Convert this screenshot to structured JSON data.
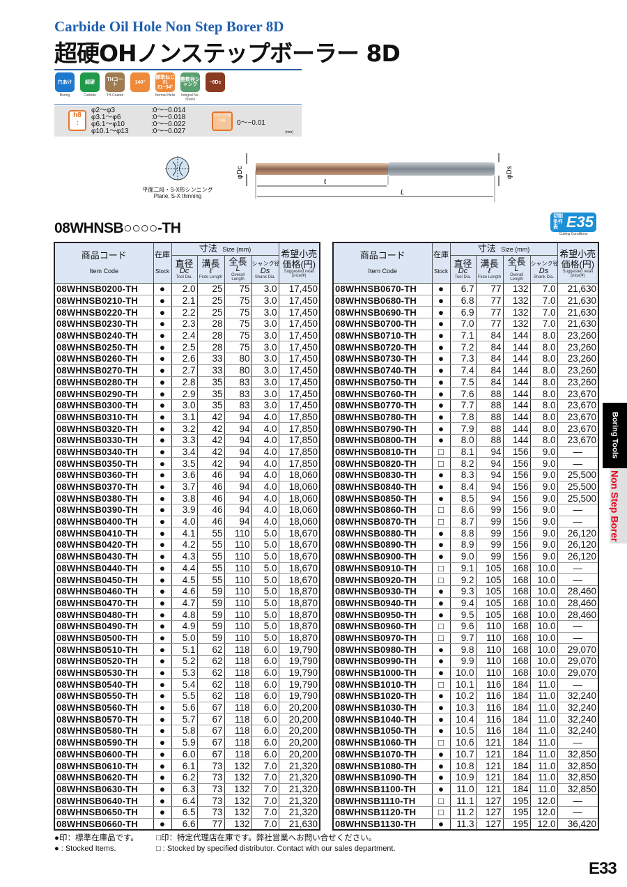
{
  "header": {
    "subtitle_en": "Carbide Oil Hole Non Step Borer 8D",
    "title_ja": "超硬OHノンステップボーラー 8D"
  },
  "feature_icons": [
    {
      "label": "穴あけ",
      "caption": "Boring",
      "color": "#1e78d0"
    },
    {
      "label": "超硬",
      "caption": "Carbide",
      "color": "#1f9a4a"
    },
    {
      "label": "THコート",
      "caption": "TH-Coated",
      "color": "#a07a50"
    },
    {
      "label": "140°",
      "caption": "",
      "color": "#ef8a3c"
    },
    {
      "label": "標準ねじれ 21~34°",
      "caption": "Normal Helix",
      "color": "#ef8a3c"
    },
    {
      "label": "整数径シャンク",
      "caption": "Integral No. Shank",
      "color": "#5aa070"
    },
    {
      "label": "~8Dc",
      "caption": "",
      "color": "#8a3a20"
    }
  ],
  "tolerance": {
    "badge": "h8",
    "rows": [
      [
        "φ2～φ3",
        ":0～−0.014"
      ],
      [
        "φ3.1～φ6",
        ":0～−0.018"
      ],
      [
        "φ6.1～φ10",
        ":0～−0.022"
      ],
      [
        "φ10.1～φ13",
        ":0～−0.027"
      ]
    ],
    "shank_badge": "シャンク径公差",
    "shank_value": "0～−0.01",
    "unit": "(mm)"
  },
  "diagram": {
    "thinning_ja": "平面二段・S-X形シンニング",
    "thinning_en": "Plane, S-X thinning",
    "labels": {
      "dc": "φDc",
      "ds": "φDs",
      "flute": "ℓ",
      "overall": "L"
    }
  },
  "series_code": "08WHNSB○○○○-TH",
  "cutting_conditions": {
    "badge": "E35",
    "badge_ja": "切削条件表",
    "caption": "Cutting Conditions"
  },
  "table_header": {
    "item_ja": "商品コード",
    "item_en": "Item Code",
    "stock_ja": "在庫",
    "stock_en": "Stock",
    "size_ja": "寸法",
    "size_en": "Size (mm)",
    "dc_ja": "直径",
    "dc_sym": "Dc",
    "dc_en": "Tool Dia.",
    "fl_ja": "溝長",
    "fl_sym": "ℓ",
    "fl_en": "Flute Length",
    "ol_ja": "全長",
    "ol_sym": "L",
    "ol_en": "Overall Length",
    "ds_ja": "シャンク径",
    "ds_sym": "Ds",
    "ds_en": "Shank Dia.",
    "price_ja": "希望小売価格(円)",
    "price_en": "Suggested retail price(¥)"
  },
  "columns": [
    "item_code",
    "stock",
    "dc",
    "flute_length",
    "overall_length",
    "shank_dia",
    "price"
  ],
  "table_left": [
    [
      "08WHNSB0200-TH",
      "●",
      "2.0",
      "25",
      "75",
      "3.0",
      "17,450"
    ],
    [
      "08WHNSB0210-TH",
      "●",
      "2.1",
      "25",
      "75",
      "3.0",
      "17,450"
    ],
    [
      "08WHNSB0220-TH",
      "●",
      "2.2",
      "25",
      "75",
      "3.0",
      "17,450"
    ],
    [
      "08WHNSB0230-TH",
      "●",
      "2.3",
      "28",
      "75",
      "3.0",
      "17,450"
    ],
    [
      "08WHNSB0240-TH",
      "●",
      "2.4",
      "28",
      "75",
      "3.0",
      "17,450"
    ],
    [
      "08WHNSB0250-TH",
      "●",
      "2.5",
      "28",
      "75",
      "3.0",
      "17,450"
    ],
    [
      "08WHNSB0260-TH",
      "●",
      "2.6",
      "33",
      "80",
      "3.0",
      "17,450"
    ],
    [
      "08WHNSB0270-TH",
      "●",
      "2.7",
      "33",
      "80",
      "3.0",
      "17,450"
    ],
    [
      "08WHNSB0280-TH",
      "●",
      "2.8",
      "35",
      "83",
      "3.0",
      "17,450"
    ],
    [
      "08WHNSB0290-TH",
      "●",
      "2.9",
      "35",
      "83",
      "3.0",
      "17,450"
    ],
    [
      "08WHNSB0300-TH",
      "●",
      "3.0",
      "35",
      "83",
      "3.0",
      "17,450"
    ],
    [
      "08WHNSB0310-TH",
      "●",
      "3.1",
      "42",
      "94",
      "4.0",
      "17,850"
    ],
    [
      "08WHNSB0320-TH",
      "●",
      "3.2",
      "42",
      "94",
      "4.0",
      "17,850"
    ],
    [
      "08WHNSB0330-TH",
      "●",
      "3.3",
      "42",
      "94",
      "4.0",
      "17,850"
    ],
    [
      "08WHNSB0340-TH",
      "●",
      "3.4",
      "42",
      "94",
      "4.0",
      "17,850"
    ],
    [
      "08WHNSB0350-TH",
      "●",
      "3.5",
      "42",
      "94",
      "4.0",
      "17,850"
    ],
    [
      "08WHNSB0360-TH",
      "●",
      "3.6",
      "46",
      "94",
      "4.0",
      "18,060"
    ],
    [
      "08WHNSB0370-TH",
      "●",
      "3.7",
      "46",
      "94",
      "4.0",
      "18,060"
    ],
    [
      "08WHNSB0380-TH",
      "●",
      "3.8",
      "46",
      "94",
      "4.0",
      "18,060"
    ],
    [
      "08WHNSB0390-TH",
      "●",
      "3.9",
      "46",
      "94",
      "4.0",
      "18,060"
    ],
    [
      "08WHNSB0400-TH",
      "●",
      "4.0",
      "46",
      "94",
      "4.0",
      "18,060"
    ],
    [
      "08WHNSB0410-TH",
      "●",
      "4.1",
      "55",
      "110",
      "5.0",
      "18,670"
    ],
    [
      "08WHNSB0420-TH",
      "●",
      "4.2",
      "55",
      "110",
      "5.0",
      "18,670"
    ],
    [
      "08WHNSB0430-TH",
      "●",
      "4.3",
      "55",
      "110",
      "5.0",
      "18,670"
    ],
    [
      "08WHNSB0440-TH",
      "●",
      "4.4",
      "55",
      "110",
      "5.0",
      "18,670"
    ],
    [
      "08WHNSB0450-TH",
      "●",
      "4.5",
      "55",
      "110",
      "5.0",
      "18,670"
    ],
    [
      "08WHNSB0460-TH",
      "●",
      "4.6",
      "59",
      "110",
      "5.0",
      "18,870"
    ],
    [
      "08WHNSB0470-TH",
      "●",
      "4.7",
      "59",
      "110",
      "5.0",
      "18,870"
    ],
    [
      "08WHNSB0480-TH",
      "●",
      "4.8",
      "59",
      "110",
      "5.0",
      "18,870"
    ],
    [
      "08WHNSB0490-TH",
      "●",
      "4.9",
      "59",
      "110",
      "5.0",
      "18,870"
    ],
    [
      "08WHNSB0500-TH",
      "●",
      "5.0",
      "59",
      "110",
      "5.0",
      "18,870"
    ],
    [
      "08WHNSB0510-TH",
      "●",
      "5.1",
      "62",
      "118",
      "6.0",
      "19,790"
    ],
    [
      "08WHNSB0520-TH",
      "●",
      "5.2",
      "62",
      "118",
      "6.0",
      "19,790"
    ],
    [
      "08WHNSB0530-TH",
      "●",
      "5.3",
      "62",
      "118",
      "6.0",
      "19,790"
    ],
    [
      "08WHNSB0540-TH",
      "●",
      "5.4",
      "62",
      "118",
      "6.0",
      "19,790"
    ],
    [
      "08WHNSB0550-TH",
      "●",
      "5.5",
      "62",
      "118",
      "6.0",
      "19,790"
    ],
    [
      "08WHNSB0560-TH",
      "●",
      "5.6",
      "67",
      "118",
      "6.0",
      "20,200"
    ],
    [
      "08WHNSB0570-TH",
      "●",
      "5.7",
      "67",
      "118",
      "6.0",
      "20,200"
    ],
    [
      "08WHNSB0580-TH",
      "●",
      "5.8",
      "67",
      "118",
      "6.0",
      "20,200"
    ],
    [
      "08WHNSB0590-TH",
      "●",
      "5.9",
      "67",
      "118",
      "6.0",
      "20,200"
    ],
    [
      "08WHNSB0600-TH",
      "●",
      "6.0",
      "67",
      "118",
      "6.0",
      "20,200"
    ],
    [
      "08WHNSB0610-TH",
      "●",
      "6.1",
      "73",
      "132",
      "7.0",
      "21,320"
    ],
    [
      "08WHNSB0620-TH",
      "●",
      "6.2",
      "73",
      "132",
      "7.0",
      "21,320"
    ],
    [
      "08WHNSB0630-TH",
      "●",
      "6.3",
      "73",
      "132",
      "7.0",
      "21,320"
    ],
    [
      "08WHNSB0640-TH",
      "●",
      "6.4",
      "73",
      "132",
      "7.0",
      "21,320"
    ],
    [
      "08WHNSB0650-TH",
      "●",
      "6.5",
      "73",
      "132",
      "7.0",
      "21,320"
    ],
    [
      "08WHNSB0660-TH",
      "●",
      "6.6",
      "77",
      "132",
      "7.0",
      "21,630"
    ]
  ],
  "table_right": [
    [
      "08WHNSB0670-TH",
      "●",
      "6.7",
      "77",
      "132",
      "7.0",
      "21,630"
    ],
    [
      "08WHNSB0680-TH",
      "●",
      "6.8",
      "77",
      "132",
      "7.0",
      "21,630"
    ],
    [
      "08WHNSB0690-TH",
      "●",
      "6.9",
      "77",
      "132",
      "7.0",
      "21,630"
    ],
    [
      "08WHNSB0700-TH",
      "●",
      "7.0",
      "77",
      "132",
      "7.0",
      "21,630"
    ],
    [
      "08WHNSB0710-TH",
      "●",
      "7.1",
      "84",
      "144",
      "8.0",
      "23,260"
    ],
    [
      "08WHNSB0720-TH",
      "●",
      "7.2",
      "84",
      "144",
      "8.0",
      "23,260"
    ],
    [
      "08WHNSB0730-TH",
      "●",
      "7.3",
      "84",
      "144",
      "8.0",
      "23,260"
    ],
    [
      "08WHNSB0740-TH",
      "●",
      "7.4",
      "84",
      "144",
      "8.0",
      "23,260"
    ],
    [
      "08WHNSB0750-TH",
      "●",
      "7.5",
      "84",
      "144",
      "8.0",
      "23,260"
    ],
    [
      "08WHNSB0760-TH",
      "●",
      "7.6",
      "88",
      "144",
      "8.0",
      "23,670"
    ],
    [
      "08WHNSB0770-TH",
      "●",
      "7.7",
      "88",
      "144",
      "8.0",
      "23,670"
    ],
    [
      "08WHNSB0780-TH",
      "●",
      "7.8",
      "88",
      "144",
      "8.0",
      "23,670"
    ],
    [
      "08WHNSB0790-TH",
      "●",
      "7.9",
      "88",
      "144",
      "8.0",
      "23,670"
    ],
    [
      "08WHNSB0800-TH",
      "●",
      "8.0",
      "88",
      "144",
      "8.0",
      "23,670"
    ],
    [
      "08WHNSB0810-TH",
      "□",
      "8.1",
      "94",
      "156",
      "9.0",
      "—"
    ],
    [
      "08WHNSB0820-TH",
      "□",
      "8.2",
      "94",
      "156",
      "9.0",
      "—"
    ],
    [
      "08WHNSB0830-TH",
      "●",
      "8.3",
      "94",
      "156",
      "9.0",
      "25,500"
    ],
    [
      "08WHNSB0840-TH",
      "●",
      "8.4",
      "94",
      "156",
      "9.0",
      "25,500"
    ],
    [
      "08WHNSB0850-TH",
      "●",
      "8.5",
      "94",
      "156",
      "9.0",
      "25,500"
    ],
    [
      "08WHNSB0860-TH",
      "□",
      "8.6",
      "99",
      "156",
      "9.0",
      "—"
    ],
    [
      "08WHNSB0870-TH",
      "□",
      "8.7",
      "99",
      "156",
      "9.0",
      "—"
    ],
    [
      "08WHNSB0880-TH",
      "●",
      "8.8",
      "99",
      "156",
      "9.0",
      "26,120"
    ],
    [
      "08WHNSB0890-TH",
      "●",
      "8.9",
      "99",
      "156",
      "9.0",
      "26,120"
    ],
    [
      "08WHNSB0900-TH",
      "●",
      "9.0",
      "99",
      "156",
      "9.0",
      "26,120"
    ],
    [
      "08WHNSB0910-TH",
      "□",
      "9.1",
      "105",
      "168",
      "10.0",
      "—"
    ],
    [
      "08WHNSB0920-TH",
      "□",
      "9.2",
      "105",
      "168",
      "10.0",
      "—"
    ],
    [
      "08WHNSB0930-TH",
      "●",
      "9.3",
      "105",
      "168",
      "10.0",
      "28,460"
    ],
    [
      "08WHNSB0940-TH",
      "●",
      "9.4",
      "105",
      "168",
      "10.0",
      "28,460"
    ],
    [
      "08WHNSB0950-TH",
      "●",
      "9.5",
      "105",
      "168",
      "10.0",
      "28,460"
    ],
    [
      "08WHNSB0960-TH",
      "□",
      "9.6",
      "110",
      "168",
      "10.0",
      "—"
    ],
    [
      "08WHNSB0970-TH",
      "□",
      "9.7",
      "110",
      "168",
      "10.0",
      "—"
    ],
    [
      "08WHNSB0980-TH",
      "●",
      "9.8",
      "110",
      "168",
      "10.0",
      "29,070"
    ],
    [
      "08WHNSB0990-TH",
      "●",
      "9.9",
      "110",
      "168",
      "10.0",
      "29,070"
    ],
    [
      "08WHNSB1000-TH",
      "●",
      "10.0",
      "110",
      "168",
      "10.0",
      "29,070"
    ],
    [
      "08WHNSB1010-TH",
      "□",
      "10.1",
      "116",
      "184",
      "11.0",
      "—"
    ],
    [
      "08WHNSB1020-TH",
      "●",
      "10.2",
      "116",
      "184",
      "11.0",
      "32,240"
    ],
    [
      "08WHNSB1030-TH",
      "●",
      "10.3",
      "116",
      "184",
      "11.0",
      "32,240"
    ],
    [
      "08WHNSB1040-TH",
      "●",
      "10.4",
      "116",
      "184",
      "11.0",
      "32,240"
    ],
    [
      "08WHNSB1050-TH",
      "●",
      "10.5",
      "116",
      "184",
      "11.0",
      "32,240"
    ],
    [
      "08WHNSB1060-TH",
      "□",
      "10.6",
      "121",
      "184",
      "11.0",
      "—"
    ],
    [
      "08WHNSB1070-TH",
      "●",
      "10.7",
      "121",
      "184",
      "11.0",
      "32,850"
    ],
    [
      "08WHNSB1080-TH",
      "●",
      "10.8",
      "121",
      "184",
      "11.0",
      "32,850"
    ],
    [
      "08WHNSB1090-TH",
      "●",
      "10.9",
      "121",
      "184",
      "11.0",
      "32,850"
    ],
    [
      "08WHNSB1100-TH",
      "●",
      "11.0",
      "121",
      "184",
      "11.0",
      "32,850"
    ],
    [
      "08WHNSB1110-TH",
      "□",
      "11.1",
      "127",
      "195",
      "12.0",
      "—"
    ],
    [
      "08WHNSB1120-TH",
      "□",
      "11.2",
      "127",
      "195",
      "12.0",
      "—"
    ],
    [
      "08WHNSB1130-TH",
      "●",
      "11.3",
      "127",
      "195",
      "12.0",
      "36,420"
    ]
  ],
  "footnotes": {
    "stock_ja": "●印：標準在庫品です。",
    "dist_ja": "□印：特定代理店在庫です。弊社営業へお問い合せください。",
    "stock_en": "● : Stocked Items.",
    "dist_en": "□ : Stocked by specified distributor. Contact with our sales department."
  },
  "side_tabs": {
    "category": "Boring Tools",
    "product": "Non Step Borer"
  },
  "page_number": "E33"
}
